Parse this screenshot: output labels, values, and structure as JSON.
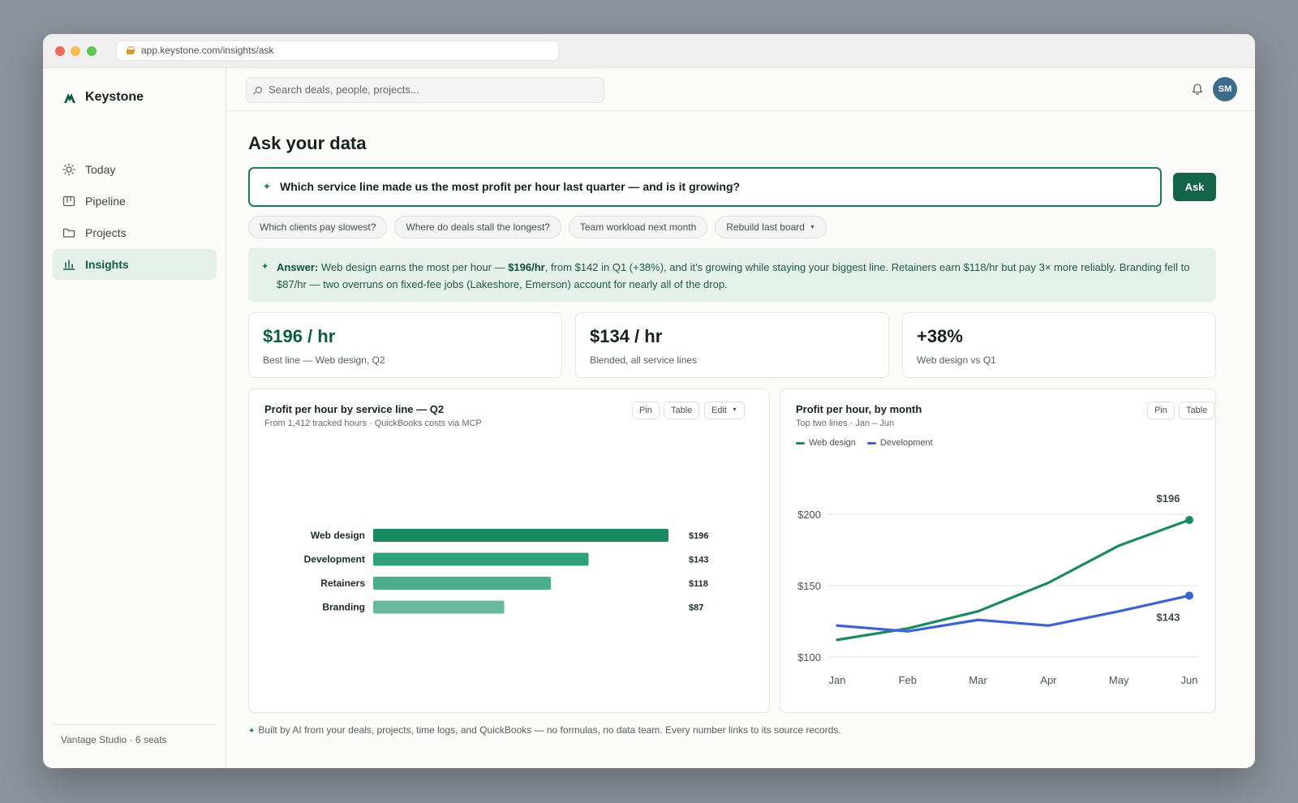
{
  "browser": {
    "url": "app.keystone.com/insights/ask"
  },
  "sidebar": {
    "brand": "Keystone",
    "items": [
      {
        "label": "Today",
        "icon": "sun-icon"
      },
      {
        "label": "Pipeline",
        "icon": "kanban-icon"
      },
      {
        "label": "Projects",
        "icon": "folder-icon"
      },
      {
        "label": "Insights",
        "icon": "bar-chart-icon",
        "active": true
      }
    ],
    "footer": "Vantage Studio · 6 seats"
  },
  "topbar": {
    "search_placeholder": "Search deals, people, projects...",
    "avatar_initials": "SM"
  },
  "main": {
    "title": "Ask your data",
    "question": "Which service line made us the most profit per hour last quarter — and is it growing?",
    "ask_label": "Ask",
    "suggestions": [
      "Which clients pay slowest?",
      "Where do deals stall the longest?",
      "Team workload next month",
      "Rebuild last board"
    ],
    "answer": {
      "label": "Answer:",
      "text_1": " Web design earns the most per hour — ",
      "highlight": "$196/hr",
      "text_2": ", from $142 in Q1 (+38%), and it's growing while staying your biggest line. Retainers earn $118/hr but pay 3× more reliably. Branding fell to $87/hr — two overruns on fixed-fee jobs (Lakeshore, Emerson) account for nearly all of the drop."
    },
    "kpis": [
      {
        "value": "$196 / hr",
        "label": "Best line — Web design, Q2"
      },
      {
        "value": "$134 / hr",
        "label": "Blended, all service lines"
      },
      {
        "value": "+38%",
        "label": "Web design vs Q1"
      }
    ],
    "footnote": "Built by AI from your deals, projects, time logs, and QuickBooks — no formulas, no data team. Every number links to its source records."
  },
  "bar_card": {
    "title": "Profit per hour by service line — Q2",
    "subtitle": "From 1,412 tracked hours · QuickBooks costs via MCP",
    "buttons": {
      "pin": "Pin",
      "table": "Table",
      "edit": "Edit"
    }
  },
  "line_card": {
    "title": "Profit per hour, by month",
    "subtitle": "Top two lines · Jan – Jun",
    "buttons": {
      "pin": "Pin",
      "table": "Table"
    }
  },
  "colors": {
    "accent": "#14644b",
    "web_design": "#1b8a62",
    "development": "#3d63d0",
    "bars": [
      "#1a8a63",
      "#31a07d",
      "#49ae8c",
      "#67b89e"
    ]
  },
  "chart_data": [
    {
      "type": "bar",
      "orientation": "horizontal",
      "title": "Profit per hour by service line — Q2",
      "categories": [
        "Web design",
        "Development",
        "Retainers",
        "Branding"
      ],
      "values": [
        196,
        143,
        118,
        87
      ],
      "value_labels": [
        "$196",
        "$143",
        "$118",
        "$87"
      ]
    },
    {
      "type": "line",
      "title": "Profit per hour, by month",
      "x": [
        "Jan",
        "Feb",
        "Mar",
        "Apr",
        "May",
        "Jun"
      ],
      "ylim": [
        100,
        200
      ],
      "yticks": [
        100,
        150,
        200
      ],
      "ytick_labels": [
        "$100",
        "$150",
        "$200"
      ],
      "grid": true,
      "legend": "top-left",
      "series": [
        {
          "name": "Web design",
          "values": [
            112,
            120,
            132,
            152,
            178,
            196
          ],
          "end_label": "$196"
        },
        {
          "name": "Development",
          "values": [
            122,
            118,
            126,
            122,
            132,
            143
          ],
          "end_label": "$143"
        }
      ]
    }
  ]
}
